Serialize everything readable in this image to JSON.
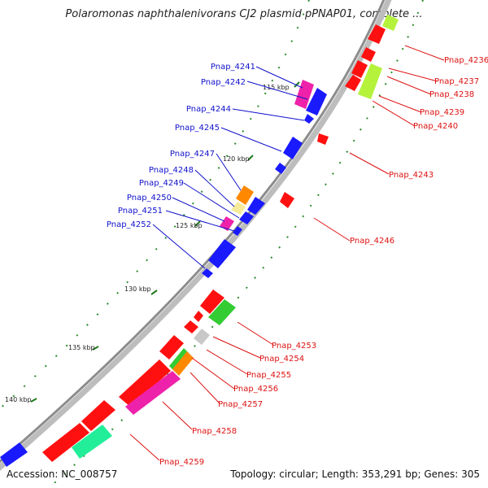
{
  "title": "Polaromonas naphthalenivorans CJ2 plasmid pPNAP01, complete ...",
  "footer": {
    "accession": "Accession: NC_008757",
    "summary": "Topology: circular; Length: 353,291 bp; Genes: 305"
  },
  "colors": {
    "backbone": "#8c8c8c",
    "tick": "#1f7a1f",
    "dot": "#2e8b2e",
    "blue_label": "#1111cc",
    "red_label": "#dd1111",
    "gene_blue": "#1a1aff",
    "gene_red": "#ff1010",
    "gene_magenta": "#ee22aa",
    "gene_orange": "#ff8800",
    "gene_yellow": "#f5eb9a",
    "gene_green": "#33cc33",
    "gene_lime": "#b4f23c",
    "gene_mint": "#22ee99",
    "gene_grey": "#c8c8c8"
  },
  "scale_labels": [
    "115 kbp",
    "120 kbp",
    "125 kbp",
    "130 kbp",
    "135 kbp",
    "140 kbp"
  ],
  "left_labels": [
    "Pnap_4241",
    "Pnap_4242",
    "Pnap_4244",
    "Pnap_4245",
    "Pnap_4247",
    "Pnap_4248",
    "Pnap_4249",
    "Pnap_4250",
    "Pnap_4251",
    "Pnap_4252"
  ],
  "right_labels": [
    "Pnap_4236",
    "Pnap_4237",
    "Pnap_4238",
    "Pnap_4239",
    "Pnap_4240",
    "Pnap_4243",
    "Pnap_4246",
    "Pnap_4253",
    "Pnap_4254",
    "Pnap_4255",
    "Pnap_4256",
    "Pnap_4257",
    "Pnap_4258",
    "Pnap_4259"
  ]
}
